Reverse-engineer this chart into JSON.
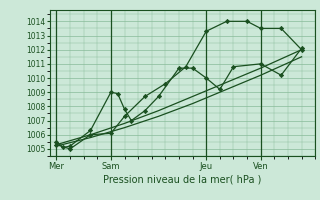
{
  "background_color": "#cce8d8",
  "plot_bg_color": "#cce8d8",
  "grid_color": "#88bb99",
  "line_color": "#1a5020",
  "marker_color": "#1a5020",
  "xlabel": "Pression niveau de la mer( hPa )",
  "ylim": [
    1004.5,
    1014.8
  ],
  "yticks": [
    1005,
    1006,
    1007,
    1008,
    1009,
    1010,
    1011,
    1012,
    1013,
    1014
  ],
  "xtick_labels": [
    "Mer",
    "Sam",
    "Jeu",
    "Ven"
  ],
  "xtick_positions": [
    0,
    8,
    22,
    30
  ],
  "vline_positions": [
    0,
    8,
    22,
    30
  ],
  "xlim": [
    -1,
    38
  ],
  "lines": [
    {
      "x": [
        0,
        1,
        2,
        5,
        8,
        9,
        10,
        11,
        13,
        15,
        18,
        20,
        22,
        24,
        26,
        30,
        33,
        36
      ],
      "y": [
        1005.5,
        1005.1,
        1005.2,
        1006.3,
        1009.0,
        1008.9,
        1007.8,
        1007.0,
        1007.7,
        1008.7,
        1010.7,
        1010.7,
        1010.0,
        1009.2,
        1010.8,
        1011.0,
        1010.2,
        1012.1
      ],
      "has_marker": true
    },
    {
      "x": [
        0,
        2,
        5,
        8,
        10,
        13,
        16,
        19,
        22,
        25,
        28,
        30,
        33,
        36
      ],
      "y": [
        1005.3,
        1005.0,
        1006.0,
        1006.1,
        1007.3,
        1008.7,
        1009.6,
        1010.8,
        1013.3,
        1014.0,
        1014.0,
        1013.5,
        1013.5,
        1012.0
      ],
      "has_marker": true
    },
    {
      "x": [
        0,
        5,
        10,
        15,
        20,
        25,
        30,
        36
      ],
      "y": [
        1005.2,
        1005.8,
        1006.5,
        1007.3,
        1008.2,
        1009.2,
        1010.2,
        1011.5
      ],
      "has_marker": false
    },
    {
      "x": [
        0,
        5,
        10,
        15,
        20,
        25,
        30,
        36
      ],
      "y": [
        1005.3,
        1006.0,
        1006.8,
        1007.7,
        1008.7,
        1009.7,
        1010.7,
        1012.0
      ],
      "has_marker": false
    }
  ]
}
